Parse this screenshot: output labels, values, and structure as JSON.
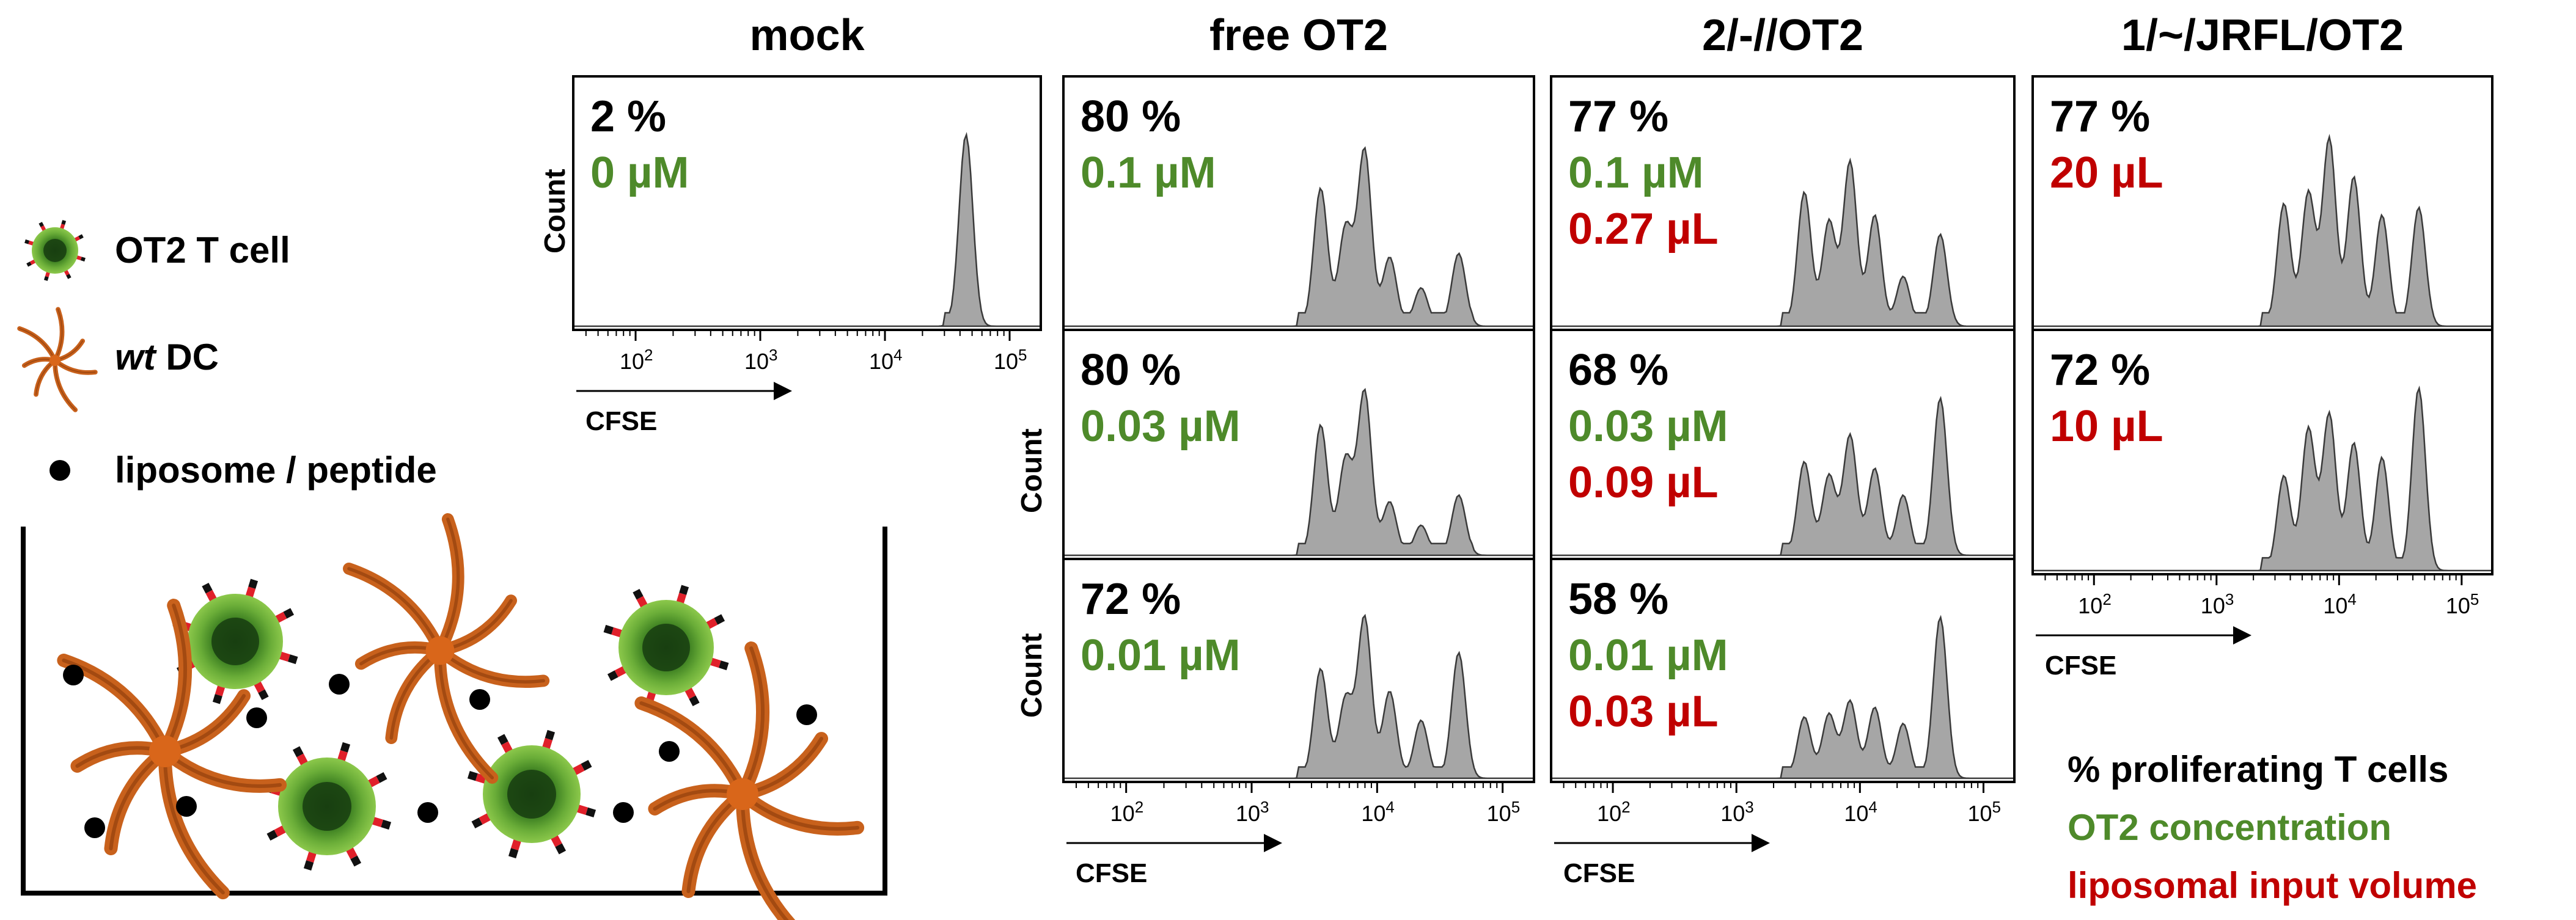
{
  "legend": {
    "items": [
      {
        "label": "OT2 T cell",
        "icon": "ot2-t-cell-icon"
      },
      {
        "label_italic": "wt",
        "label": "DC",
        "icon": "dendritic-cell-icon"
      },
      {
        "label": "liposome / peptide",
        "icon": "liposome-dot-icon"
      }
    ],
    "key": [
      {
        "label": "% proliferating T cells",
        "color": "#000000"
      },
      {
        "label": "OT2 concentration",
        "color": "#4e8a2a"
      },
      {
        "label": "liposomal input volume",
        "color": "#c00000"
      }
    ]
  },
  "axis": {
    "x_label": "CFSE",
    "y_label": "Count",
    "ticks": [
      {
        "base": "10",
        "exp": "2"
      },
      {
        "base": "10",
        "exp": "3"
      },
      {
        "base": "10",
        "exp": "4"
      },
      {
        "base": "10",
        "exp": "5"
      }
    ]
  },
  "colors": {
    "green": "#4e8a2a",
    "red": "#c00000",
    "fill": "#a6a6a6"
  },
  "chart_data": {
    "type": "histogram",
    "x_axis": "CFSE (log scale)",
    "xlim_log10": [
      1.5,
      5.25
    ],
    "y_axis": "Count",
    "columns": [
      {
        "title": "mock",
        "panels": [
          {
            "percent": "2 %",
            "concentration": "0 µM",
            "volume": null,
            "peaks_log10": [
              [
                4.65,
                1.0
              ]
            ]
          }
        ]
      },
      {
        "title": "free OT2",
        "panels": [
          {
            "percent": "80 %",
            "concentration": "0.1 µM",
            "volume": null,
            "peaks_log10": [
              [
                3.55,
                0.72
              ],
              [
                3.75,
                0.52
              ],
              [
                3.9,
                0.92
              ],
              [
                4.1,
                0.36
              ],
              [
                4.35,
                0.2
              ],
              [
                4.65,
                0.38
              ]
            ]
          },
          {
            "percent": "80 %",
            "concentration": "0.03 µM",
            "volume": null,
            "peaks_log10": [
              [
                3.55,
                0.78
              ],
              [
                3.75,
                0.58
              ],
              [
                3.9,
                0.98
              ],
              [
                4.1,
                0.32
              ],
              [
                4.35,
                0.18
              ],
              [
                4.65,
                0.36
              ]
            ]
          },
          {
            "percent": "72 %",
            "concentration": "0.01 µM",
            "volume": null,
            "peaks_log10": [
              [
                3.55,
                0.68
              ],
              [
                3.75,
                0.5
              ],
              [
                3.9,
                1.0
              ],
              [
                4.1,
                0.54
              ],
              [
                4.35,
                0.36
              ],
              [
                4.65,
                0.78
              ]
            ]
          }
        ]
      },
      {
        "title": "2/-//OT2",
        "panels": [
          {
            "percent": "77 %",
            "concentration": "0.1 µM",
            "volume": "0.27 µL",
            "peaks_log10": [
              [
                3.55,
                0.7
              ],
              [
                3.75,
                0.55
              ],
              [
                3.92,
                0.86
              ],
              [
                4.12,
                0.58
              ],
              [
                4.35,
                0.26
              ],
              [
                4.65,
                0.48
              ]
            ]
          },
          {
            "percent": "68 %",
            "concentration": "0.03 µM",
            "volume": "0.09 µL",
            "peaks_log10": [
              [
                3.55,
                0.56
              ],
              [
                3.75,
                0.48
              ],
              [
                3.92,
                0.72
              ],
              [
                4.12,
                0.52
              ],
              [
                4.35,
                0.36
              ],
              [
                4.65,
                0.94
              ]
            ]
          },
          {
            "percent": "58 %",
            "concentration": "0.01 µM",
            "volume": "0.03 µL",
            "peaks_log10": [
              [
                3.55,
                0.38
              ],
              [
                3.75,
                0.4
              ],
              [
                3.92,
                0.48
              ],
              [
                4.12,
                0.44
              ],
              [
                4.35,
                0.34
              ],
              [
                4.65,
                1.0
              ]
            ]
          }
        ]
      },
      {
        "title": "1/~/JRFL/OT2",
        "panels": [
          {
            "percent": "77 %",
            "concentration": null,
            "volume": "20 µL",
            "peaks_log10": [
              [
                3.55,
                0.64
              ],
              [
                3.75,
                0.7
              ],
              [
                3.92,
                0.98
              ],
              [
                4.12,
                0.78
              ],
              [
                4.35,
                0.58
              ],
              [
                4.65,
                0.62
              ]
            ]
          },
          {
            "percent": "72 %",
            "concentration": null,
            "volume": "10 µL",
            "peaks_log10": [
              [
                3.55,
                0.52
              ],
              [
                3.75,
                0.78
              ],
              [
                3.92,
                0.86
              ],
              [
                4.12,
                0.7
              ],
              [
                4.35,
                0.62
              ],
              [
                4.65,
                1.0
              ]
            ]
          }
        ]
      }
    ]
  }
}
